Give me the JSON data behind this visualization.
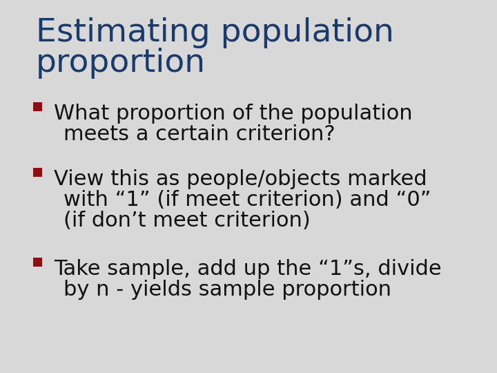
{
  "title_line1": "Estimating population",
  "title_line2": "proportion",
  "title_color": "#1a3a6b",
  "title_fontsize": 34,
  "title_fontweight": "normal",
  "background_color": "#D8D8D8",
  "bullet_color": "#8B1010",
  "bullet_text_color": "#111111",
  "bullet_fontsize": 22,
  "bullet_fontweight": "normal",
  "bullets": [
    [
      "What proportion of the population",
      "meets a certain criterion?"
    ],
    [
      "View this as people/objects marked",
      "with “1” (if meet criterion) and “0”",
      "(if don’t meet criterion)"
    ],
    [
      "Take sample, add up the “1”s, divide",
      "by n - yields sample proportion"
    ]
  ],
  "fig_width": 7.2,
  "fig_height": 5.4,
  "dpi": 100
}
